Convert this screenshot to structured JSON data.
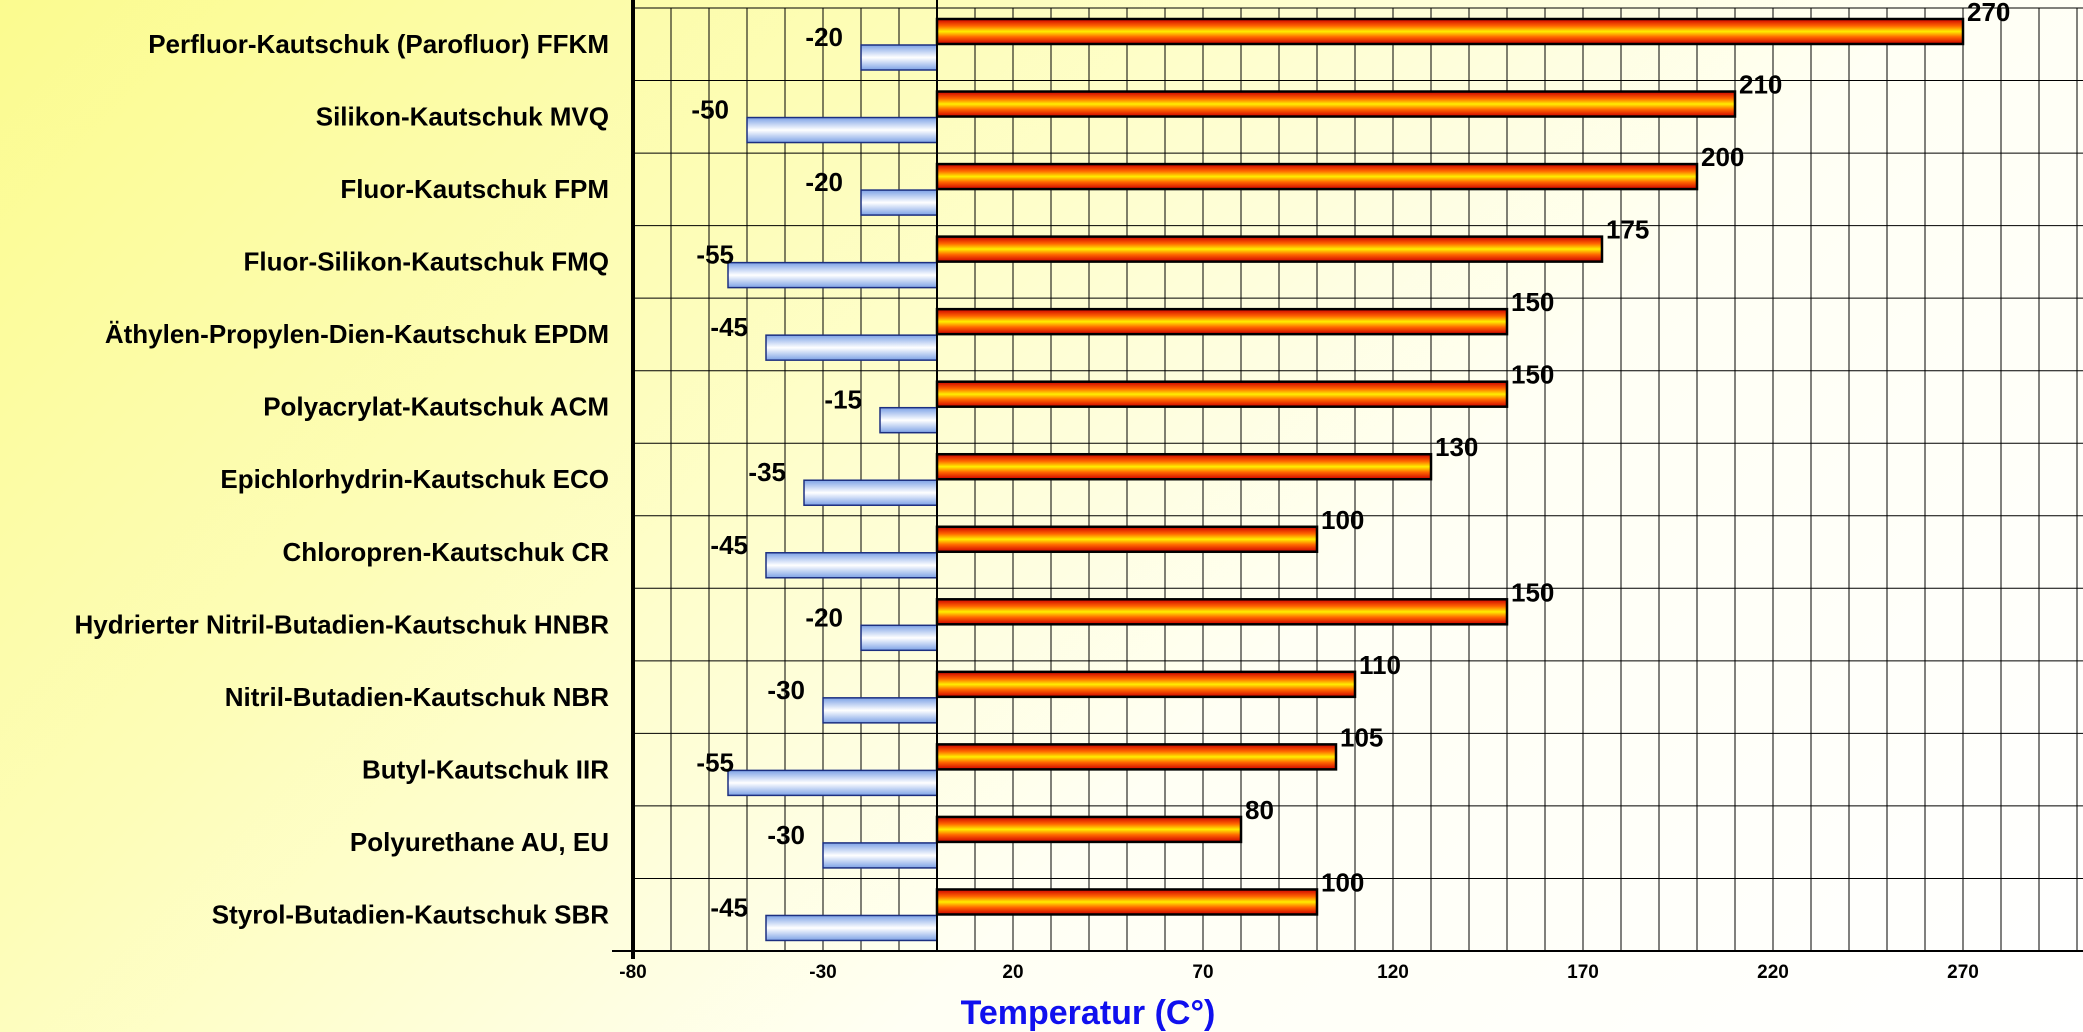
{
  "chart_data": {
    "type": "bar",
    "orientation": "horizontal",
    "categories": [
      "Perfluor-Kautschuk (Parofluor)  FFKM",
      "Silikon-Kautschuk  MVQ",
      "Fluor-Kautschuk  FPM",
      "Fluor-Silikon-Kautschuk  FMQ",
      "Äthylen-Propylen-Dien-Kautschuk  EPDM",
      "Polyacrylat-Kautschuk  ACM",
      "Epichlorhydrin-Kautschuk  ECO",
      "Chloropren-Kautschuk  CR",
      "Hydrierter Nitril-Butadien-Kautschuk  HNBR",
      "Nitril-Butadien-Kautschuk  NBR",
      "Butyl-Kautschuk  IIR",
      "Polyurethane  AU, EU",
      "Styrol-Butadien-Kautschuk  SBR"
    ],
    "series": [
      {
        "values": [
          270,
          210,
          200,
          175,
          150,
          150,
          130,
          100,
          150,
          110,
          105,
          80,
          100
        ],
        "color": "#ff2200"
      },
      {
        "values": [
          -20,
          -50,
          -20,
          -55,
          -45,
          -15,
          -35,
          -45,
          -20,
          -30,
          -55,
          -30,
          -45
        ],
        "color": "#a8c4f2"
      }
    ],
    "xlabel": "Temperatur (C°)",
    "ylabel": "",
    "title": "",
    "xlim": [
      -80,
      300
    ],
    "xticks": [
      -80,
      -30,
      20,
      70,
      120,
      170,
      220,
      270
    ],
    "grid": true
  },
  "colors": {
    "axis_title": "#1010ee",
    "bar_hot": "#ff2200",
    "bar_cold": "#a8c4f2"
  }
}
